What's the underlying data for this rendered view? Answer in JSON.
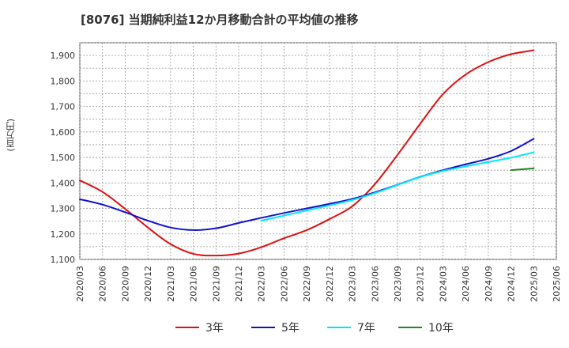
{
  "title": "[8076]  当期純利益12か月移動合計の平均値の推移",
  "chart_data": {
    "type": "line",
    "title": "[8076]  当期純利益12か月移動合計の平均値の推移",
    "xlabel": "",
    "ylabel": "(百万円)",
    "ylim": [
      1100,
      1950
    ],
    "yticks": [
      1100,
      1200,
      1300,
      1400,
      1500,
      1600,
      1700,
      1800,
      1900
    ],
    "ytick_labels": [
      "1,100",
      "1,200",
      "1,300",
      "1,400",
      "1,500",
      "1,600",
      "1,700",
      "1,800",
      "1,900"
    ],
    "xticks": [
      "2020/03",
      "2020/06",
      "2020/09",
      "2020/12",
      "2021/03",
      "2021/06",
      "2021/09",
      "2021/12",
      "2022/03",
      "2022/06",
      "2022/09",
      "2022/12",
      "2023/03",
      "2023/06",
      "2023/09",
      "2023/12",
      "2024/03",
      "2024/06",
      "2024/09",
      "2024/12",
      "2025/03",
      "2025/06"
    ],
    "grid": true,
    "legend_position": "bottom",
    "series": [
      {
        "name": "3年",
        "color": "#dd1111",
        "points": [
          [
            "2020/03",
            1410
          ],
          [
            "2020/06",
            1365
          ],
          [
            "2020/09",
            1298
          ],
          [
            "2020/12",
            1225
          ],
          [
            "2021/03",
            1160
          ],
          [
            "2021/06",
            1122
          ],
          [
            "2021/09",
            1115
          ],
          [
            "2021/12",
            1123
          ],
          [
            "2022/03",
            1148
          ],
          [
            "2022/06",
            1183
          ],
          [
            "2022/09",
            1215
          ],
          [
            "2022/12",
            1258
          ],
          [
            "2023/03",
            1308
          ],
          [
            "2023/06",
            1395
          ],
          [
            "2023/09",
            1510
          ],
          [
            "2023/12",
            1632
          ],
          [
            "2024/03",
            1748
          ],
          [
            "2024/06",
            1825
          ],
          [
            "2024/09",
            1874
          ],
          [
            "2024/12",
            1905
          ],
          [
            "2025/03",
            1920
          ]
        ]
      },
      {
        "name": "5年",
        "color": "#1111cc",
        "points": [
          [
            "2020/03",
            1336
          ],
          [
            "2020/06",
            1315
          ],
          [
            "2020/09",
            1285
          ],
          [
            "2020/12",
            1252
          ],
          [
            "2021/03",
            1225
          ],
          [
            "2021/06",
            1215
          ],
          [
            "2021/09",
            1222
          ],
          [
            "2021/12",
            1243
          ],
          [
            "2022/03",
            1263
          ],
          [
            "2022/06",
            1282
          ],
          [
            "2022/09",
            1300
          ],
          [
            "2022/12",
            1318
          ],
          [
            "2023/03",
            1337
          ],
          [
            "2023/06",
            1363
          ],
          [
            "2023/09",
            1393
          ],
          [
            "2023/12",
            1424
          ],
          [
            "2024/03",
            1450
          ],
          [
            "2024/06",
            1473
          ],
          [
            "2024/09",
            1495
          ],
          [
            "2024/12",
            1525
          ],
          [
            "2025/03",
            1573
          ]
        ]
      },
      {
        "name": "7年",
        "color": "#00e5ff",
        "points": [
          [
            "2022/03",
            1252
          ],
          [
            "2022/06",
            1272
          ],
          [
            "2022/09",
            1292
          ],
          [
            "2022/12",
            1312
          ],
          [
            "2023/03",
            1333
          ],
          [
            "2023/06",
            1360
          ],
          [
            "2023/09",
            1392
          ],
          [
            "2023/12",
            1423
          ],
          [
            "2024/03",
            1447
          ],
          [
            "2024/06",
            1465
          ],
          [
            "2024/09",
            1482
          ],
          [
            "2024/12",
            1499
          ],
          [
            "2025/03",
            1520
          ]
        ]
      },
      {
        "name": "10年",
        "color": "#228822",
        "points": [
          [
            "2024/12",
            1450
          ],
          [
            "2025/03",
            1457
          ]
        ]
      }
    ]
  }
}
